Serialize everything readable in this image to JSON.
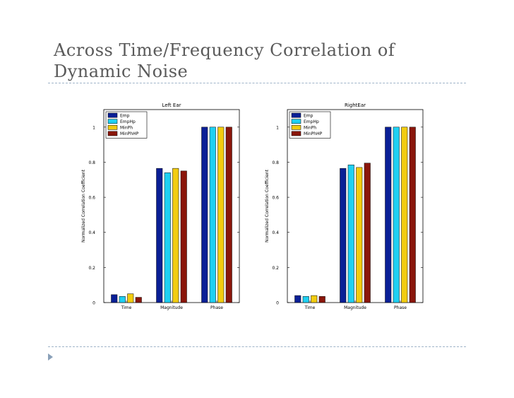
{
  "slide": {
    "title_line1": "Across Time/Frequency Correlation of",
    "title_line2": "Dynamic Noise"
  },
  "chart_data": [
    {
      "type": "bar",
      "title": "Left Ear",
      "xlabel": "",
      "ylabel": "Normalized Correlation Coefficient",
      "categories": [
        "Time",
        "Magnitude",
        "Phase"
      ],
      "ylim": [
        0,
        1.1
      ],
      "yticks": [
        0,
        0.2,
        0.4,
        0.6,
        0.8,
        1
      ],
      "ytick_labels": [
        "0",
        "0.2",
        "0.4",
        "0.6",
        "0.8",
        "1"
      ],
      "legend_position": "top-left",
      "series": [
        {
          "name": "Emp",
          "color": "#0a1f96",
          "values": [
            0.045,
            0.765,
            1.0
          ]
        },
        {
          "name": "EmpHp",
          "color": "#1fd0f2",
          "values": [
            0.035,
            0.74,
            1.0
          ]
        },
        {
          "name": "MinPh",
          "color": "#f2cc10",
          "values": [
            0.05,
            0.765,
            1.0
          ]
        },
        {
          "name": "MinPhHP",
          "color": "#8a160b",
          "values": [
            0.03,
            0.75,
            1.0
          ]
        }
      ]
    },
    {
      "type": "bar",
      "title": "RightEar",
      "xlabel": "",
      "ylabel": "Normalized Correlation Coefficient",
      "categories": [
        "Time",
        "Magnitude",
        "Phase"
      ],
      "ylim": [
        0,
        1.1
      ],
      "yticks": [
        0,
        0.2,
        0.4,
        0.6,
        0.8,
        1
      ],
      "ytick_labels": [
        "0",
        "0.2",
        "0.4",
        "0.6",
        "0.8",
        "1"
      ],
      "legend_position": "top-left",
      "series": [
        {
          "name": "Emp",
          "color": "#0a1f96",
          "values": [
            0.04,
            0.765,
            1.0
          ]
        },
        {
          "name": "EmpHp",
          "color": "#1fd0f2",
          "values": [
            0.035,
            0.785,
            1.0
          ]
        },
        {
          "name": "MinPh",
          "color": "#f2cc10",
          "values": [
            0.04,
            0.77,
            1.0
          ]
        },
        {
          "name": "MinPhHP",
          "color": "#8a160b",
          "values": [
            0.035,
            0.795,
            1.0
          ]
        }
      ]
    }
  ]
}
